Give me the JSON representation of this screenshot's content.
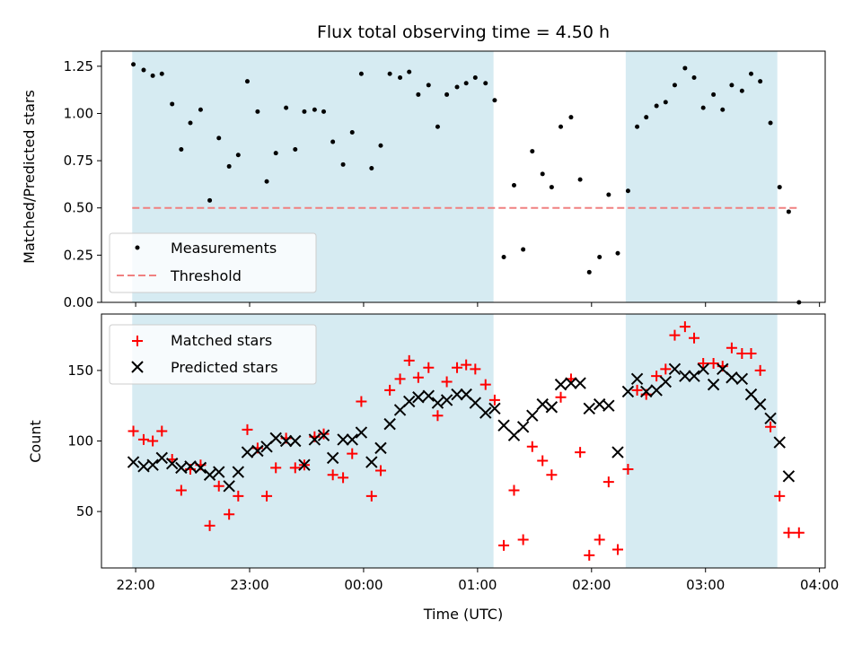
{
  "title": "Flux total observing time = 4.50 h",
  "chart_data": [
    {
      "type": "scatter",
      "ylabel": "Matched/Predicted stars",
      "xlabel": "",
      "ylim": [
        0,
        1.33
      ],
      "yticks": [
        0,
        0.25,
        0.5,
        0.75,
        1.0,
        1.25
      ],
      "ytick_labels": [
        "0.00",
        "0.25",
        "0.50",
        "0.75",
        "1.00",
        "1.25"
      ],
      "xlim_hours": [
        21.7,
        28.05
      ],
      "xticks_hours": [
        22,
        23,
        24,
        25,
        26,
        27,
        28
      ],
      "shaded_spans_hours": [
        [
          21.97,
          25.14
        ],
        [
          26.3,
          27.63
        ]
      ],
      "threshold": {
        "name": "Threshold",
        "value": 0.5,
        "x_range_hours": [
          21.97,
          27.8
        ],
        "color": "#f08080"
      },
      "legend": {
        "location": "lower-left",
        "entries": [
          "Measurements",
          "Threshold"
        ]
      },
      "series": [
        {
          "name": "Measurements",
          "marker": "dot",
          "color": "#000000",
          "points": [
            [
              21.98,
              1.26
            ],
            [
              22.07,
              1.23
            ],
            [
              22.15,
              1.2
            ],
            [
              22.23,
              1.21
            ],
            [
              22.32,
              1.05
            ],
            [
              22.4,
              0.81
            ],
            [
              22.48,
              0.95
            ],
            [
              22.57,
              1.02
            ],
            [
              22.65,
              0.54
            ],
            [
              22.73,
              0.87
            ],
            [
              22.82,
              0.72
            ],
            [
              22.9,
              0.78
            ],
            [
              22.98,
              1.17
            ],
            [
              23.07,
              1.01
            ],
            [
              23.15,
              0.64
            ],
            [
              23.23,
              0.79
            ],
            [
              23.32,
              1.03
            ],
            [
              23.4,
              0.81
            ],
            [
              23.48,
              1.01
            ],
            [
              23.57,
              1.02
            ],
            [
              23.65,
              1.01
            ],
            [
              23.73,
              0.85
            ],
            [
              23.82,
              0.73
            ],
            [
              23.9,
              0.9
            ],
            [
              23.98,
              1.21
            ],
            [
              24.07,
              0.71
            ],
            [
              24.15,
              0.83
            ],
            [
              24.23,
              1.21
            ],
            [
              24.32,
              1.19
            ],
            [
              24.4,
              1.22
            ],
            [
              24.48,
              1.1
            ],
            [
              24.57,
              1.15
            ],
            [
              24.65,
              0.93
            ],
            [
              24.73,
              1.1
            ],
            [
              24.82,
              1.14
            ],
            [
              24.9,
              1.16
            ],
            [
              24.98,
              1.19
            ],
            [
              25.07,
              1.16
            ],
            [
              25.15,
              1.07
            ],
            [
              25.23,
              0.24
            ],
            [
              25.32,
              0.62
            ],
            [
              25.4,
              0.28
            ],
            [
              25.48,
              0.8
            ],
            [
              25.57,
              0.68
            ],
            [
              25.65,
              0.61
            ],
            [
              25.73,
              0.93
            ],
            [
              25.82,
              0.98
            ],
            [
              25.9,
              0.65
            ],
            [
              25.98,
              0.16
            ],
            [
              26.07,
              0.24
            ],
            [
              26.15,
              0.57
            ],
            [
              26.23,
              0.26
            ],
            [
              26.32,
              0.59
            ],
            [
              26.4,
              0.93
            ],
            [
              26.48,
              0.98
            ],
            [
              26.57,
              1.04
            ],
            [
              26.65,
              1.06
            ],
            [
              26.73,
              1.15
            ],
            [
              26.82,
              1.24
            ],
            [
              26.9,
              1.19
            ],
            [
              26.98,
              1.03
            ],
            [
              27.07,
              1.1
            ],
            [
              27.15,
              1.02
            ],
            [
              27.23,
              1.15
            ],
            [
              27.32,
              1.12
            ],
            [
              27.4,
              1.21
            ],
            [
              27.48,
              1.17
            ],
            [
              27.57,
              0.95
            ],
            [
              27.65,
              0.61
            ],
            [
              27.73,
              0.48
            ],
            [
              27.82,
              0.0
            ]
          ]
        }
      ]
    },
    {
      "type": "scatter",
      "ylabel": "Count",
      "xlabel": "Time (UTC)",
      "ylim": [
        10,
        190
      ],
      "yticks": [
        50,
        100,
        150
      ],
      "ytick_labels": [
        "50",
        "100",
        "150"
      ],
      "xlim_hours": [
        21.7,
        28.05
      ],
      "xticks_hours": [
        22,
        23,
        24,
        25,
        26,
        27,
        28
      ],
      "xtick_labels": [
        "22:00",
        "23:00",
        "00:00",
        "01:00",
        "02:00",
        "03:00",
        "04:00"
      ],
      "shaded_spans_hours": [
        [
          21.97,
          25.14
        ],
        [
          26.3,
          27.63
        ]
      ],
      "legend": {
        "location": "top-left",
        "entries": [
          "Matched stars",
          "Predicted stars"
        ]
      },
      "series": [
        {
          "name": "Matched stars",
          "marker": "plus",
          "color": "#ff0000",
          "points": [
            [
              21.98,
              107
            ],
            [
              22.07,
              101
            ],
            [
              22.15,
              100
            ],
            [
              22.23,
              107
            ],
            [
              22.32,
              87
            ],
            [
              22.4,
              65
            ],
            [
              22.48,
              80
            ],
            [
              22.57,
              83
            ],
            [
              22.65,
              40
            ],
            [
              22.73,
              68
            ],
            [
              22.82,
              48
            ],
            [
              22.9,
              61
            ],
            [
              22.98,
              108
            ],
            [
              23.07,
              95
            ],
            [
              23.15,
              61
            ],
            [
              23.23,
              81
            ],
            [
              23.32,
              102
            ],
            [
              23.4,
              81
            ],
            [
              23.48,
              83
            ],
            [
              23.57,
              103
            ],
            [
              23.65,
              105
            ],
            [
              23.73,
              76
            ],
            [
              23.82,
              74
            ],
            [
              23.9,
              91
            ],
            [
              23.98,
              128
            ],
            [
              24.07,
              61
            ],
            [
              24.15,
              79
            ],
            [
              24.23,
              136
            ],
            [
              24.32,
              144
            ],
            [
              24.4,
              157
            ],
            [
              24.48,
              145
            ],
            [
              24.57,
              152
            ],
            [
              24.65,
              118
            ],
            [
              24.73,
              142
            ],
            [
              24.82,
              152
            ],
            [
              24.9,
              154
            ],
            [
              24.98,
              151
            ],
            [
              25.07,
              140
            ],
            [
              25.15,
              129
            ],
            [
              25.23,
              26
            ],
            [
              25.32,
              65
            ],
            [
              25.4,
              30
            ],
            [
              25.48,
              96
            ],
            [
              25.57,
              86
            ],
            [
              25.65,
              76
            ],
            [
              25.73,
              131
            ],
            [
              25.82,
              144
            ],
            [
              25.9,
              92
            ],
            [
              25.98,
              19
            ],
            [
              26.07,
              30
            ],
            [
              26.15,
              71
            ],
            [
              26.23,
              23
            ],
            [
              26.32,
              80
            ],
            [
              26.4,
              136
            ],
            [
              26.48,
              133
            ],
            [
              26.57,
              146
            ],
            [
              26.65,
              151
            ],
            [
              26.73,
              175
            ],
            [
              26.82,
              181
            ],
            [
              26.9,
              173
            ],
            [
              26.98,
              155
            ],
            [
              27.07,
              155
            ],
            [
              27.15,
              153
            ],
            [
              27.23,
              166
            ],
            [
              27.32,
              162
            ],
            [
              27.4,
              162
            ],
            [
              27.48,
              150
            ],
            [
              27.57,
              110
            ],
            [
              27.65,
              61
            ],
            [
              27.73,
              35
            ],
            [
              27.82,
              35
            ]
          ]
        },
        {
          "name": "Predicted stars",
          "marker": "x",
          "color": "#000000",
          "points": [
            [
              21.98,
              85
            ],
            [
              22.07,
              82
            ],
            [
              22.15,
              83
            ],
            [
              22.23,
              88
            ],
            [
              22.32,
              84
            ],
            [
              22.4,
              81
            ],
            [
              22.48,
              82
            ],
            [
              22.57,
              81
            ],
            [
              22.65,
              76
            ],
            [
              22.73,
              78
            ],
            [
              22.82,
              68
            ],
            [
              22.9,
              78
            ],
            [
              22.98,
              92
            ],
            [
              23.07,
              93
            ],
            [
              23.15,
              96
            ],
            [
              23.23,
              102
            ],
            [
              23.32,
              100
            ],
            [
              23.4,
              100
            ],
            [
              23.48,
              83
            ],
            [
              23.57,
              101
            ],
            [
              23.65,
              104
            ],
            [
              23.73,
              88
            ],
            [
              23.82,
              101
            ],
            [
              23.9,
              101
            ],
            [
              23.98,
              106
            ],
            [
              24.07,
              85
            ],
            [
              24.15,
              95
            ],
            [
              24.23,
              112
            ],
            [
              24.32,
              122
            ],
            [
              24.4,
              128
            ],
            [
              24.48,
              131
            ],
            [
              24.57,
              132
            ],
            [
              24.65,
              127
            ],
            [
              24.73,
              129
            ],
            [
              24.82,
              133
            ],
            [
              24.9,
              133
            ],
            [
              24.98,
              127
            ],
            [
              25.07,
              120
            ],
            [
              25.15,
              123
            ],
            [
              25.23,
              111
            ],
            [
              25.32,
              104
            ],
            [
              25.4,
              110
            ],
            [
              25.48,
              118
            ],
            [
              25.57,
              126
            ],
            [
              25.65,
              124
            ],
            [
              25.73,
              140
            ],
            [
              25.82,
              141
            ],
            [
              25.9,
              141
            ],
            [
              25.98,
              123
            ],
            [
              26.07,
              126
            ],
            [
              26.15,
              125
            ],
            [
              26.23,
              92
            ],
            [
              26.32,
              135
            ],
            [
              26.4,
              144
            ],
            [
              26.48,
              135
            ],
            [
              26.57,
              136
            ],
            [
              26.65,
              142
            ],
            [
              26.73,
              151
            ],
            [
              26.82,
              146
            ],
            [
              26.9,
              146
            ],
            [
              26.98,
              151
            ],
            [
              27.07,
              140
            ],
            [
              27.15,
              151
            ],
            [
              27.23,
              145
            ],
            [
              27.32,
              144
            ],
            [
              27.4,
              133
            ],
            [
              27.48,
              126
            ],
            [
              27.57,
              116
            ],
            [
              27.65,
              99
            ],
            [
              27.73,
              75
            ]
          ]
        }
      ]
    }
  ]
}
